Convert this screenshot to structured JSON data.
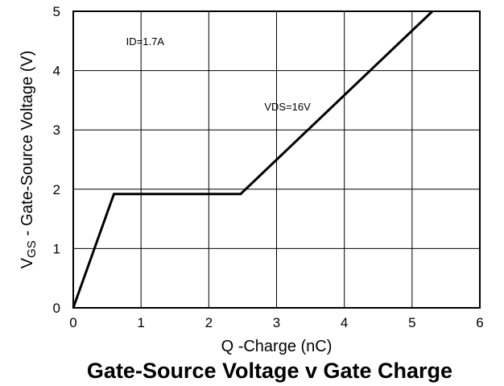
{
  "chart_data": {
    "type": "line",
    "title": "Gate-Source Voltage v Gate Charge",
    "xlabel": "Q -Charge (nC)",
    "ylabel_prefix": "V",
    "ylabel_sub": "GS",
    "ylabel_suffix": " - Gate-Source Voltage (V)",
    "xlim": [
      0,
      6
    ],
    "ylim": [
      0,
      5
    ],
    "xticks": [
      "0",
      "1",
      "2",
      "3",
      "4",
      "5",
      "6"
    ],
    "yticks": [
      "0",
      "1",
      "2",
      "3",
      "4",
      "5"
    ],
    "grid": true,
    "series": [
      {
        "x": [
          0,
          0.6,
          2.47,
          5.3
        ],
        "y": [
          0,
          1.92,
          1.92,
          5.0
        ]
      }
    ],
    "annotations": [
      {
        "text": "ID=1.7A",
        "x": 0.78,
        "y": 4.5
      },
      {
        "text": "VDS=16V",
        "x": 2.82,
        "y": 3.4
      }
    ]
  }
}
